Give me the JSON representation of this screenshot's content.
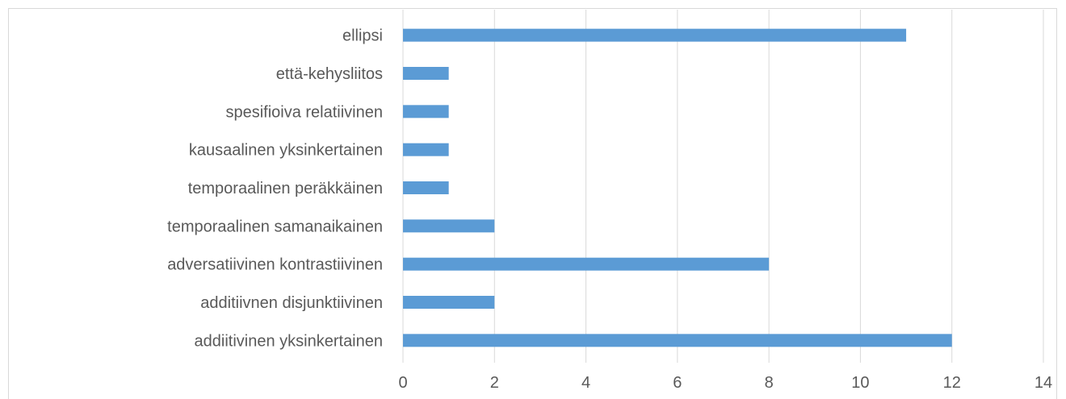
{
  "chart_data": {
    "type": "bar",
    "orientation": "horizontal",
    "title": "",
    "xlabel": "",
    "ylabel": "",
    "categories": [
      "ellipsi",
      "että-kehysliitos",
      "spesifioiva relatiivinen",
      "kausaalinen yksinkertainen",
      "temporaalinen peräkkäinen",
      "temporaalinen samanaikainen",
      "adversatiivinen kontrastiivinen",
      "additiivnen disjunktiivinen",
      "addiitivinen yksinkertainen"
    ],
    "values": [
      11,
      1,
      1,
      1,
      1,
      2,
      8,
      2,
      12
    ],
    "xlim": [
      0,
      14
    ],
    "xticks": [
      "0",
      "2",
      "4",
      "6",
      "8",
      "10",
      "12",
      "14"
    ],
    "grid": true,
    "legend": false,
    "bar_color": "#5b9bd5",
    "grid_color": "#d9d9d9"
  }
}
